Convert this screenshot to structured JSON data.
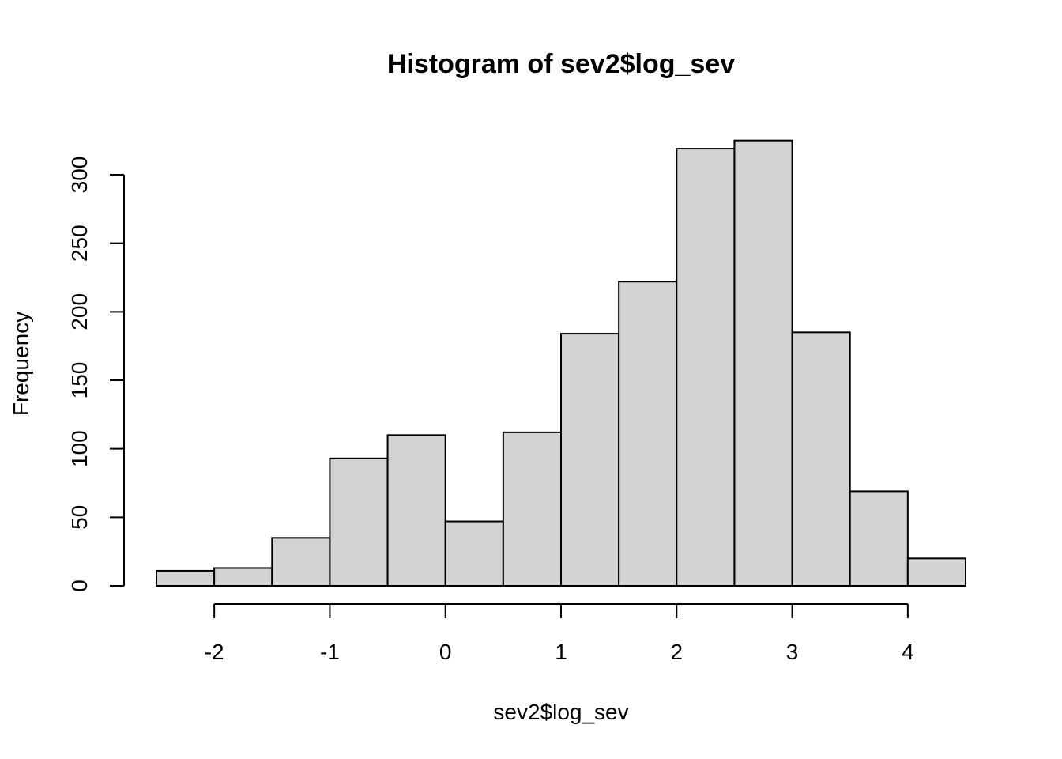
{
  "chart_data": {
    "type": "bar",
    "title": "Histogram of sev2$log_sev",
    "xlabel": "sev2$log_sev",
    "ylabel": "Frequency",
    "bins": [
      {
        "start": -2.5,
        "end": -2.0,
        "value": 11
      },
      {
        "start": -2.0,
        "end": -1.5,
        "value": 13
      },
      {
        "start": -1.5,
        "end": -1.0,
        "value": 35
      },
      {
        "start": -1.0,
        "end": -0.5,
        "value": 93
      },
      {
        "start": -0.5,
        "end": 0.0,
        "value": 110
      },
      {
        "start": 0.0,
        "end": 0.5,
        "value": 47
      },
      {
        "start": 0.5,
        "end": 1.0,
        "value": 112
      },
      {
        "start": 1.0,
        "end": 1.5,
        "value": 184
      },
      {
        "start": 1.5,
        "end": 2.0,
        "value": 222
      },
      {
        "start": 2.0,
        "end": 2.5,
        "value": 319
      },
      {
        "start": 2.5,
        "end": 3.0,
        "value": 325
      },
      {
        "start": 3.0,
        "end": 3.5,
        "value": 185
      },
      {
        "start": 3.5,
        "end": 4.0,
        "value": 69
      },
      {
        "start": 4.0,
        "end": 4.5,
        "value": 20
      }
    ],
    "xlim": [
      -2.5,
      4.5
    ],
    "ylim": [
      0,
      325
    ],
    "xticks": [
      -2,
      -1,
      0,
      1,
      2,
      3,
      4
    ],
    "yticks": [
      0,
      50,
      100,
      150,
      200,
      250,
      300
    ],
    "grid": false,
    "colors": {
      "bar_fill": "#d3d3d3",
      "bar_stroke": "#000000"
    }
  }
}
